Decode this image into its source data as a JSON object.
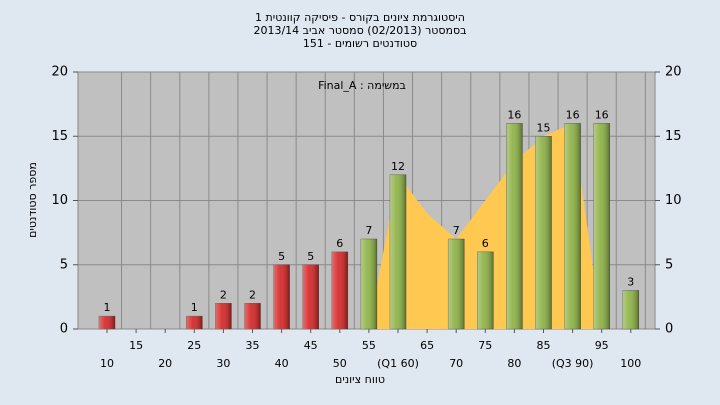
{
  "chart_data": {
    "type": "bar",
    "title": "היסטוגרמת ציונים בקורס - פיסיקה קוונטית 1",
    "subtitle": "בסמסטר  (02/2013)  סמסטר אביב  2013/14",
    "subtitle2": "סטודנטים רשומים - 151",
    "annotation": "במשימה : Final_A",
    "ylabel": "מספר סטודנטים",
    "xlabel": "טווח ציונים",
    "categories": [
      "10",
      "15",
      "20",
      "25",
      "30",
      "35",
      "40",
      "45",
      "50",
      "55",
      "(Q1 60)",
      "65",
      "70",
      "75",
      "80",
      "85",
      "(Q3 90)",
      "95",
      "100"
    ],
    "values": [
      1,
      null,
      null,
      1,
      2,
      2,
      5,
      5,
      6,
      7,
      12,
      null,
      7,
      6,
      16,
      15,
      16,
      16,
      3
    ],
    "colors": [
      "#d42020",
      "#d42020",
      "#d42020",
      "#d42020",
      "#d42020",
      "#d42020",
      "#d42020",
      "#d42020",
      "#d42020",
      "#8ab040",
      "#8ab040",
      "#8ab040",
      "#8ab040",
      "#8ab040",
      "#8ab040",
      "#8ab040",
      "#8ab040",
      "#8ab040",
      "#8ab040"
    ],
    "area_values": [
      null,
      null,
      null,
      null,
      null,
      null,
      null,
      null,
      null,
      0,
      12,
      9,
      7,
      10,
      13,
      15,
      16,
      0,
      null
    ],
    "area_color": "#ffc850",
    "ylim": [
      0,
      20
    ],
    "yticks": [
      0,
      5,
      10,
      15,
      20
    ],
    "grid": true
  }
}
